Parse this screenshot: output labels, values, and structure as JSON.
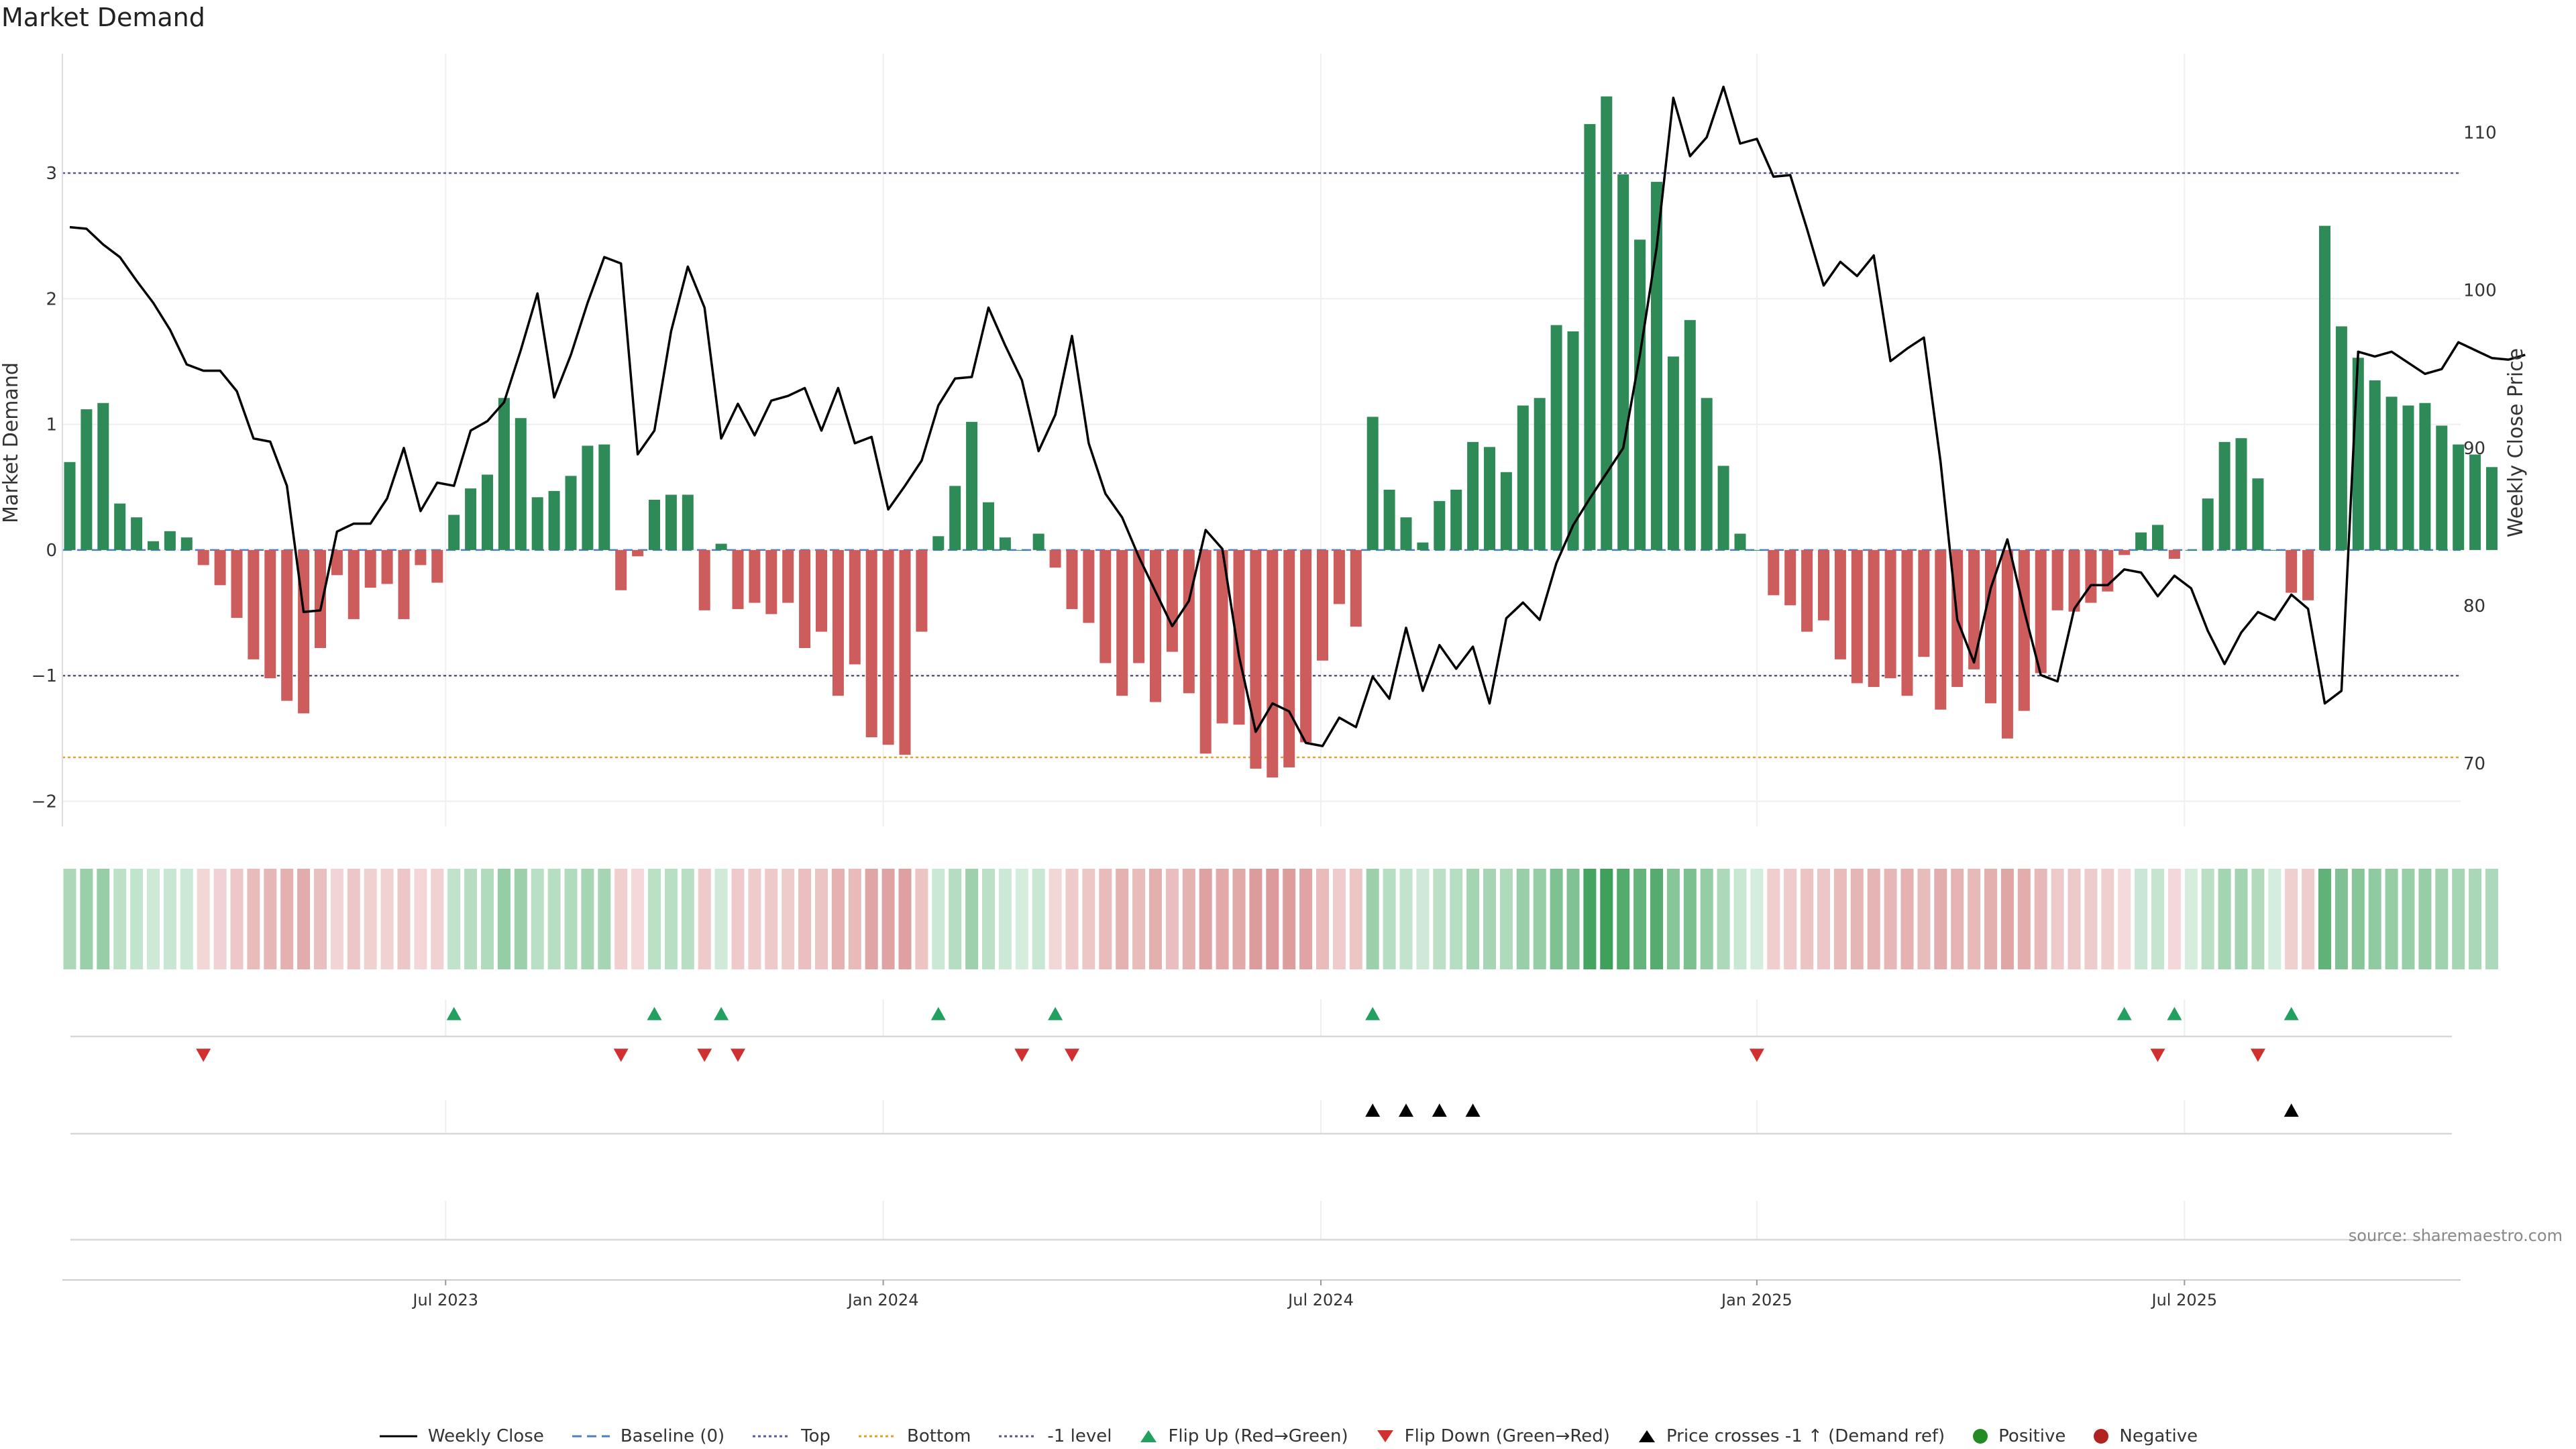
{
  "title": "Market Demand",
  "source": "source: sharemaestro.com",
  "colors": {
    "positive": "#2e8b57",
    "negative": "#cd5c5c",
    "price": "#000000",
    "top": "#5a5a9a",
    "bottom": "#e0a030",
    "minus1": "#555577",
    "flip_up": "#22a060",
    "flip_down": "#d03030",
    "cross": "#000000",
    "legend_positive": "#228b22",
    "legend_negative": "#b22222"
  },
  "chart_data": {
    "type": "bar",
    "title": "Market Demand",
    "ylabel": "Market Demand",
    "y2label": "Weekly Close Price",
    "ylim": [
      -2.2,
      3.95
    ],
    "y2lim": [
      66,
      115
    ],
    "yticks": [
      "3",
      "2",
      "1",
      "0",
      "−1",
      "−2"
    ],
    "ytick_values": [
      3,
      2,
      1,
      0,
      -1,
      -2
    ],
    "y2ticks": [
      "110",
      "100",
      "90",
      "80",
      "70"
    ],
    "y2tick_values": [
      110,
      100,
      90,
      80,
      70
    ],
    "xtick_labels": [
      "Jul 2023",
      "Jan 2024",
      "Jul 2024",
      "Jan 2025",
      "Jul 2025"
    ],
    "xtick_weeks": [
      22.5,
      48.7,
      74.9,
      101.0,
      126.6
    ],
    "reference_lines": {
      "top": 3.0,
      "bottom": -1.65,
      "minus1": -1.0,
      "baseline": 0
    },
    "demand": [
      0.7,
      1.12,
      1.17,
      0.37,
      0.26,
      0.07,
      0.15,
      0.1,
      -0.12,
      -0.28,
      -0.54,
      -0.87,
      -1.02,
      -1.2,
      -1.3,
      -0.78,
      -0.2,
      -0.55,
      -0.3,
      -0.27,
      -0.55,
      -0.12,
      -0.26,
      0.28,
      0.49,
      0.6,
      1.21,
      1.05,
      0.42,
      0.47,
      0.59,
      0.83,
      0.84,
      -0.32,
      -0.05,
      0.4,
      0.44,
      0.44,
      -0.48,
      0.05,
      -0.47,
      -0.42,
      -0.51,
      -0.42,
      -0.78,
      -0.65,
      -1.16,
      -0.91,
      -1.49,
      -1.55,
      -1.63,
      -0.65,
      0.11,
      0.51,
      1.02,
      0.38,
      0.1,
      0.0,
      0.13,
      -0.14,
      -0.47,
      -0.58,
      -0.9,
      -1.16,
      -0.9,
      -1.21,
      -0.81,
      -1.14,
      -1.62,
      -1.38,
      -1.39,
      -1.74,
      -1.81,
      -1.73,
      -1.53,
      -0.88,
      -0.43,
      -0.61,
      1.06,
      0.48,
      0.26,
      0.06,
      0.39,
      0.48,
      0.86,
      0.82,
      0.62,
      1.15,
      1.21,
      1.79,
      1.74,
      3.39,
      3.61,
      2.99,
      2.47,
      2.93,
      1.54,
      1.83,
      1.21,
      0.67,
      0.13,
      0.0,
      -0.36,
      -0.44,
      -0.65,
      -0.56,
      -0.87,
      -1.06,
      -1.09,
      -1.02,
      -1.16,
      -0.85,
      -1.27,
      -1.09,
      -0.95,
      -1.22,
      -1.5,
      -1.28,
      -0.98,
      -0.48,
      -0.49,
      -0.42,
      -0.33,
      -0.04,
      0.14,
      0.2,
      -0.07,
      0.0,
      0.41,
      0.86,
      0.89,
      0.57,
      0.0,
      -0.34,
      -0.4,
      2.58,
      1.78,
      1.53,
      1.35,
      1.22,
      1.15,
      1.17,
      0.99,
      0.84,
      0.76,
      0.66
    ],
    "price": [
      104.0,
      103.9,
      102.9,
      102.1,
      100.6,
      99.2,
      97.5,
      95.3,
      94.9,
      94.9,
      93.6,
      90.6,
      90.4,
      87.6,
      79.6,
      79.7,
      84.7,
      85.2,
      85.2,
      86.8,
      90.0,
      86.0,
      87.8,
      87.6,
      91.1,
      91.7,
      92.9,
      96.2,
      99.8,
      93.2,
      95.9,
      99.2,
      102.1,
      101.7,
      89.6,
      91.1,
      97.4,
      101.5,
      98.9,
      90.6,
      92.8,
      90.8,
      93.0,
      93.3,
      93.8,
      91.1,
      93.8,
      90.3,
      90.7,
      86.1,
      87.6,
      89.2,
      92.7,
      94.4,
      94.5,
      98.9,
      96.5,
      94.3,
      89.8,
      92.1,
      97.1,
      90.3,
      87.1,
      85.6,
      83.1,
      80.9,
      78.7,
      80.3,
      84.8,
      83.6,
      76.8,
      72.0,
      73.8,
      73.3,
      71.3,
      71.1,
      72.9,
      72.3,
      75.5,
      74.1,
      78.6,
      74.6,
      77.5,
      76.0,
      77.4,
      73.8,
      79.2,
      80.2,
      79.1,
      82.7,
      85.1,
      86.8,
      88.4,
      90.0,
      95.9,
      102.7,
      112.2,
      108.5,
      109.7,
      112.9,
      109.3,
      109.6,
      107.2,
      107.3,
      103.9,
      100.3,
      101.8,
      100.9,
      102.2,
      95.5,
      96.3,
      97.0,
      89.1,
      79.1,
      76.4,
      81.1,
      84.2,
      79.7,
      75.6,
      75.2,
      79.8,
      81.3,
      81.3,
      82.3,
      82.1,
      80.6,
      81.9,
      81.1,
      78.4,
      76.3,
      78.3,
      79.6,
      79.1,
      80.7,
      79.8,
      73.8,
      74.6,
      96.1,
      95.8,
      96.1,
      95.4,
      94.7,
      95.0,
      96.7,
      96.2,
      95.7,
      95.6,
      95.9
    ],
    "flip_up_weeks": [
      23,
      35,
      39,
      52,
      59,
      78,
      123,
      126,
      133
    ],
    "flip_down_weeks": [
      8,
      33,
      38,
      40,
      57,
      60,
      101,
      125,
      131
    ],
    "price_cross_weeks": [
      78,
      80,
      82,
      84,
      133
    ]
  },
  "legend": [
    {
      "key": "weekly-close",
      "label": "Weekly Close"
    },
    {
      "key": "baseline",
      "label": "Baseline (0)"
    },
    {
      "key": "top",
      "label": "Top"
    },
    {
      "key": "bottom",
      "label": "Bottom"
    },
    {
      "key": "minus1",
      "label": "-1 level"
    },
    {
      "key": "flip-up",
      "label": "Flip Up (Red→Green)"
    },
    {
      "key": "flip-down",
      "label": "Flip Down (Green→Red)"
    },
    {
      "key": "price-cross",
      "label": "Price crosses -1 ↑ (Demand ref)"
    },
    {
      "key": "positive",
      "label": "Positive"
    },
    {
      "key": "negative",
      "label": "Negative"
    }
  ]
}
